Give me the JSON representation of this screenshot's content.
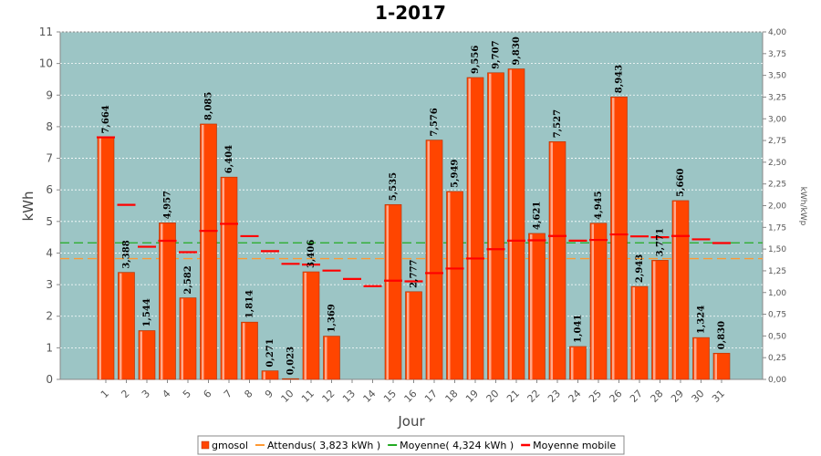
{
  "chart_data": {
    "type": "bar",
    "title": "1-2017",
    "xlabel": "Jour",
    "ylabel": "kWh",
    "ylabel_right": "kWh/kWp",
    "ylim": [
      0,
      11
    ],
    "ylim_right": [
      0,
      4
    ],
    "categories": [
      "1",
      "2",
      "3",
      "4",
      "5",
      "6",
      "7",
      "8",
      "9",
      "10",
      "11",
      "12",
      "13",
      "14",
      "15",
      "16",
      "17",
      "18",
      "19",
      "20",
      "21",
      "22",
      "23",
      "24",
      "25",
      "26",
      "27",
      "28",
      "29",
      "30",
      "31"
    ],
    "series": [
      {
        "name": "gmosol",
        "type": "bar",
        "color": "#ff4500",
        "values": [
          7.664,
          3.388,
          1.544,
          4.957,
          2.582,
          8.085,
          6.404,
          1.814,
          0.271,
          0.023,
          3.406,
          1.369,
          0,
          0,
          5.535,
          2.777,
          7.576,
          5.949,
          9.556,
          9.707,
          9.83,
          4.621,
          7.527,
          1.041,
          4.945,
          8.943,
          2.943,
          3.771,
          5.66,
          1.324,
          0.83
        ],
        "labels": [
          "7,664",
          "3,388",
          "1,544",
          "4,957",
          "2,582",
          "8,085",
          "6,404",
          "1,814",
          "0,271",
          "0,023",
          "3,406",
          "1,369",
          "",
          "",
          "5,535",
          "2,777",
          "7,576",
          "5,949",
          "9,556",
          "9,707",
          "9,830",
          "4,621",
          "7,527",
          "1,041",
          "4,945",
          "8,943",
          "2,943",
          "3,771",
          "5,660",
          "1,324",
          "0,830"
        ]
      },
      {
        "name": "Attendus( 3,823 kWh )",
        "type": "reference-line",
        "color": "#ff9933",
        "value": 3.823
      },
      {
        "name": "Moyenne( 4,324 kWh )",
        "type": "reference-line",
        "color": "#22aa22",
        "value": 4.324
      },
      {
        "name": "Moyenne mobile",
        "type": "step-markers",
        "color": "#ff0000",
        "values": [
          7.664,
          5.526,
          4.199,
          4.388,
          4.027,
          4.703,
          4.924,
          4.535,
          4.061,
          3.657,
          3.634,
          3.445,
          3.18,
          2.953,
          3.125,
          3.103,
          3.366,
          3.509,
          3.827,
          4.121,
          4.393,
          4.403,
          4.539,
          4.393,
          4.415,
          4.589,
          4.528,
          4.501,
          4.541,
          4.434,
          4.317
        ]
      }
    ],
    "yticks_left": [
      "0",
      "1",
      "2",
      "3",
      "4",
      "5",
      "6",
      "7",
      "8",
      "9",
      "10",
      "11"
    ],
    "yticks_right": [
      "0,00",
      "0,25",
      "0,50",
      "0,75",
      "1,00",
      "1,25",
      "1,50",
      "1,75",
      "2,00",
      "2,25",
      "2,50",
      "2,75",
      "3,00",
      "3,25",
      "3,50",
      "3,75",
      "4,00"
    ],
    "plot_background": "#9cc5c5",
    "grid": true,
    "legend_position": "bottom"
  }
}
